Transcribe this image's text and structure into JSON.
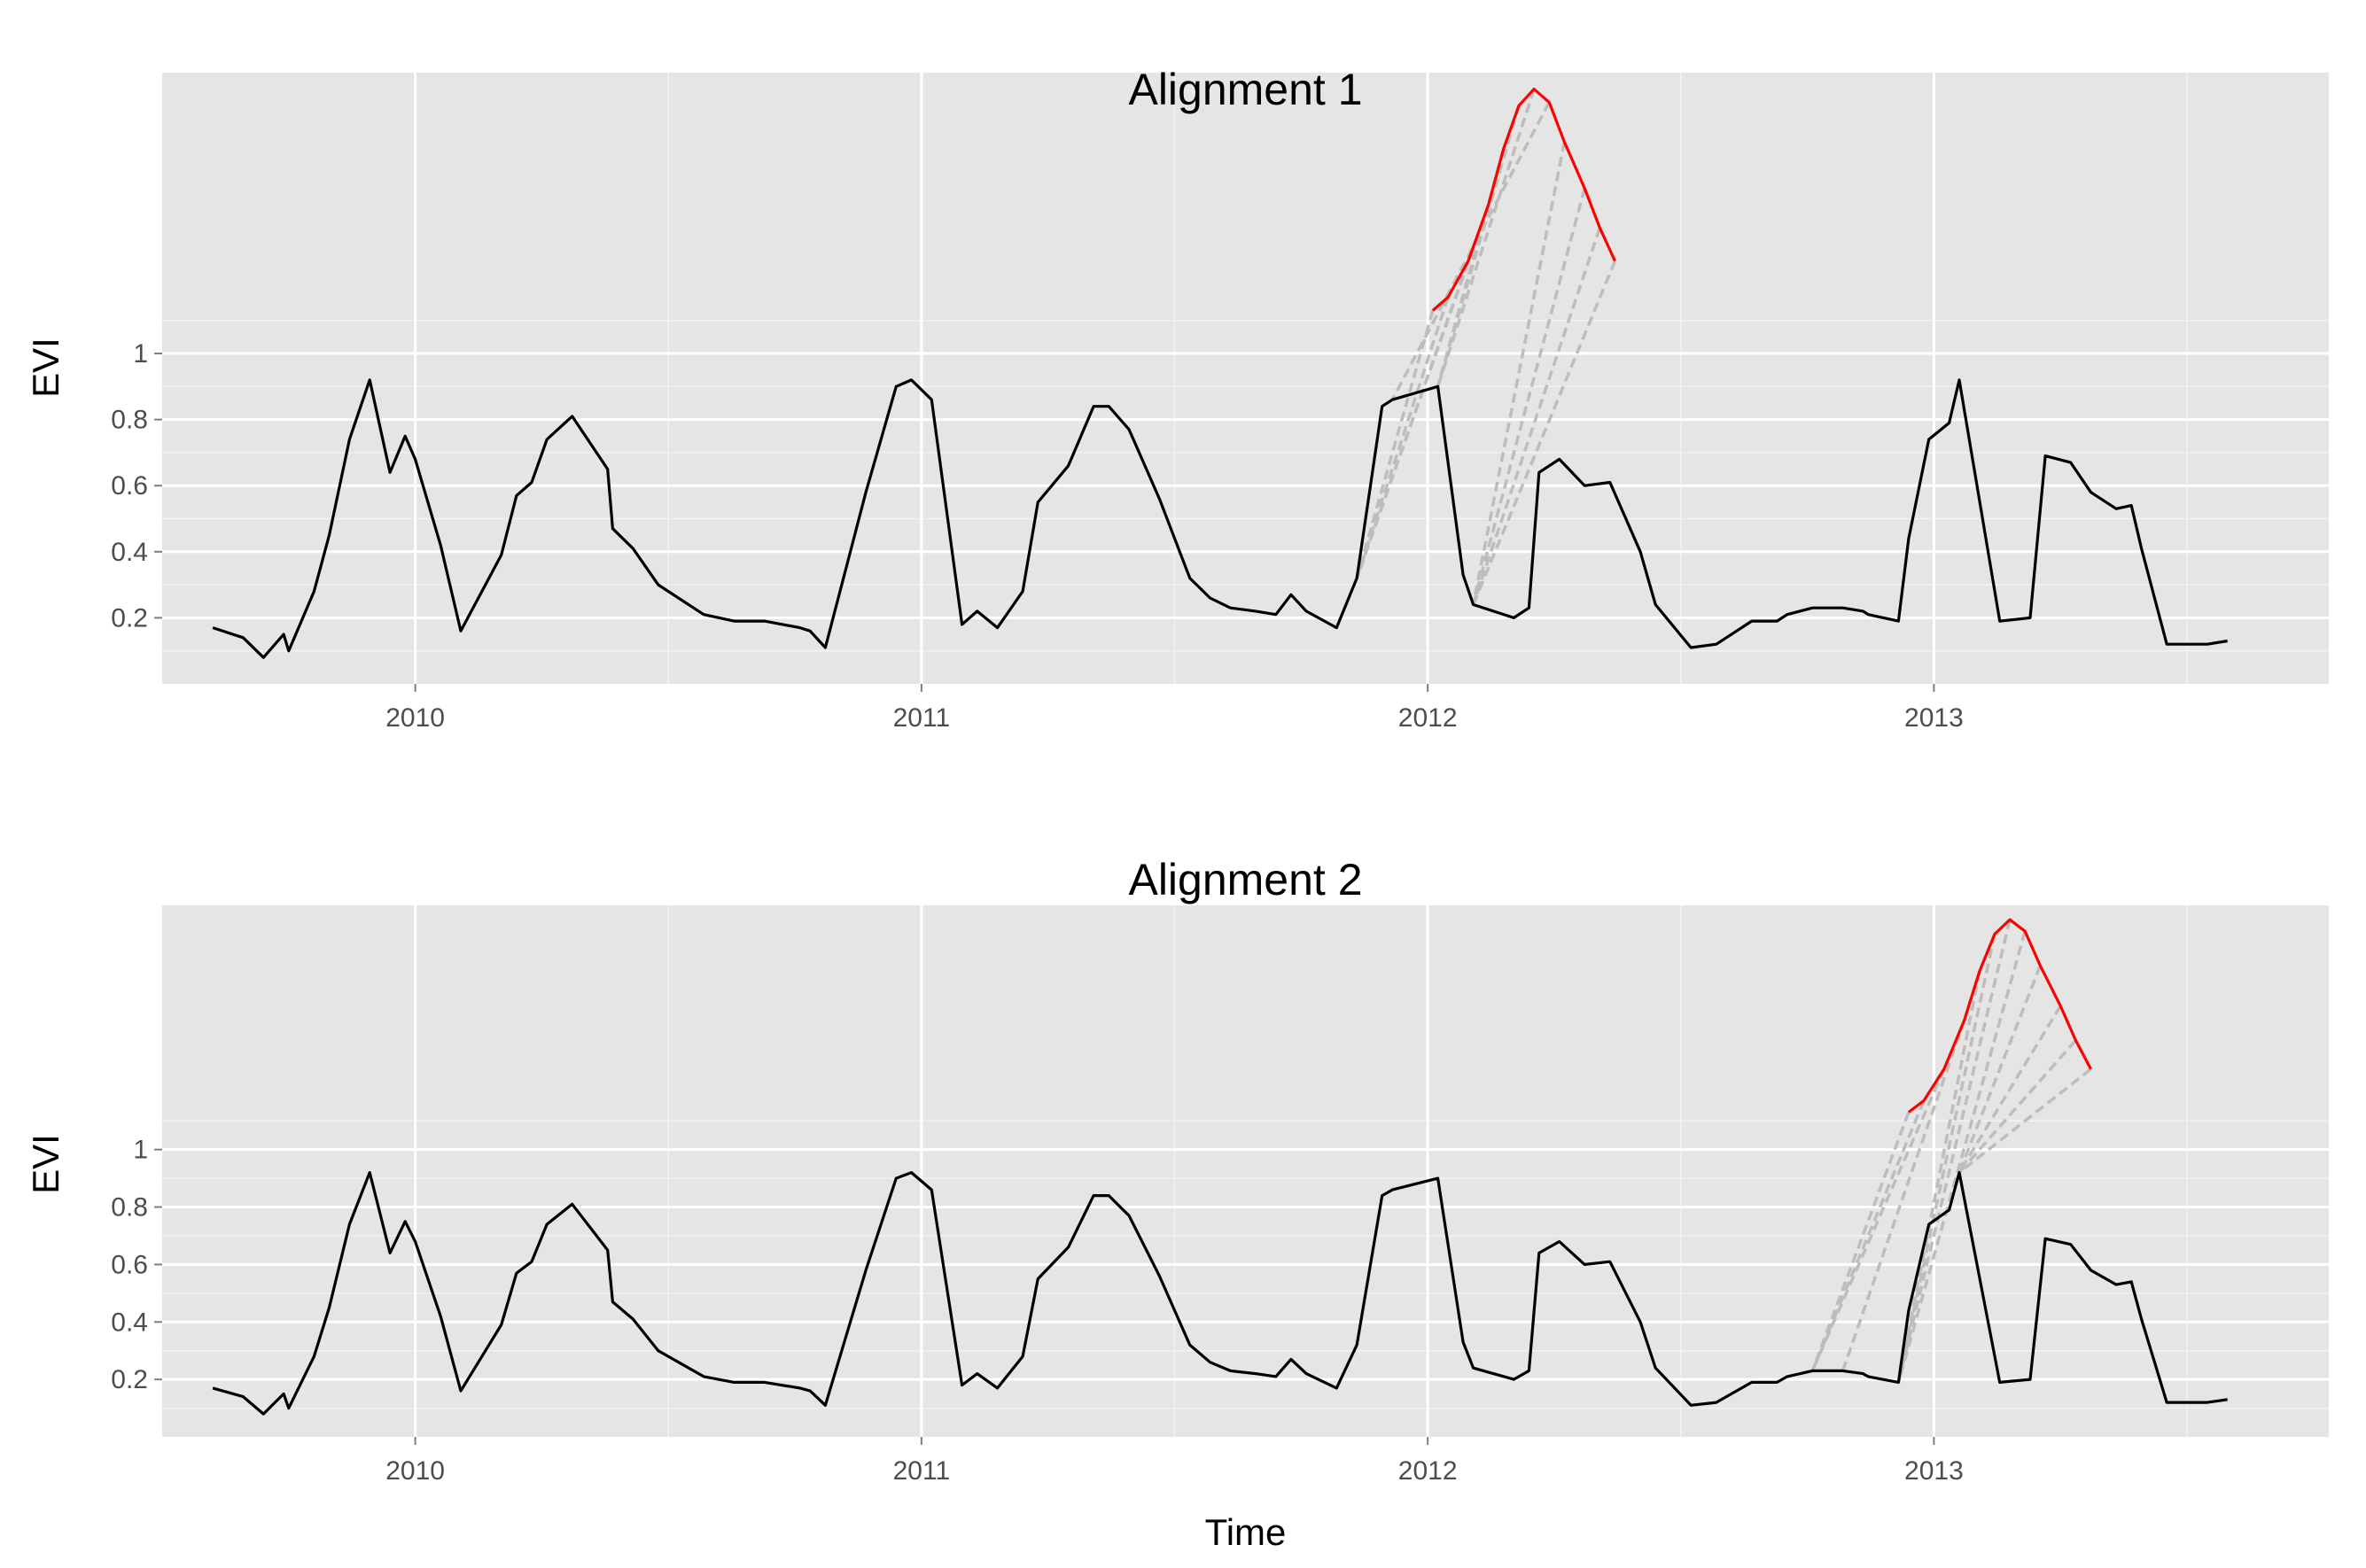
{
  "chart_data": [
    {
      "type": "line",
      "title": "Alignment 1",
      "xlabel": "",
      "ylabel": "EVI",
      "xlim": [
        2009.5,
        2013.78
      ],
      "ylim": [
        0.0,
        1.85
      ],
      "x_ticks": [
        2010,
        2011,
        2012,
        2013
      ],
      "y_ticks": [
        0.2,
        0.4,
        0.6,
        0.8,
        1
      ],
      "y_tick_labels": [
        "0.2",
        "0.4",
        "0.6",
        "0.8",
        "1"
      ],
      "grid": true,
      "series": [
        {
          "color": "#000000",
          "x": [
            2009.6,
            2009.66,
            2009.7,
            2009.74,
            2009.75,
            2009.8,
            2009.83,
            2009.87,
            2009.91,
            2009.95,
            2009.98,
            2010.0,
            2010.05,
            2010.09,
            2010.17,
            2010.2,
            2010.23,
            2010.26,
            2010.31,
            2010.38,
            2010.39,
            2010.43,
            2010.48,
            2010.57,
            2010.63,
            2010.69,
            2010.69,
            2010.76,
            2010.78,
            2010.81,
            2010.89,
            2010.95,
            2010.98,
            2011.02,
            2011.08,
            2011.11,
            2011.15,
            2011.2,
            2011.23,
            2011.29,
            2011.34,
            2011.37,
            2011.41,
            2011.47,
            2011.53,
            2011.57,
            2011.61,
            2011.66,
            2011.7,
            2011.73,
            2011.76,
            2011.82,
            2011.86,
            2011.91,
            2011.93,
            2012.02,
            2012.07,
            2012.09,
            2012.17,
            2012.2,
            2012.22,
            2012.26,
            2012.31,
            2012.36,
            2012.42,
            2012.45,
            2012.52,
            2012.57,
            2012.59,
            2012.64,
            2012.69,
            2012.71,
            2012.76,
            2012.82,
            2012.86,
            2012.87,
            2012.93,
            2012.95,
            2012.99,
            2013.03,
            2013.05,
            2013.13,
            2013.19,
            2013.22,
            2013.27,
            2013.31,
            2013.36,
            2013.39,
            2013.41,
            2013.46,
            2013.5,
            2013.54,
            2013.58
          ],
          "y": [
            0.17,
            0.14,
            0.08,
            0.15,
            0.1,
            0.28,
            0.45,
            0.74,
            0.92,
            0.64,
            0.75,
            0.68,
            0.42,
            0.16,
            0.39,
            0.57,
            0.61,
            0.74,
            0.81,
            0.65,
            0.47,
            0.41,
            0.3,
            0.21,
            0.19,
            0.19,
            0.19,
            0.17,
            0.16,
            0.11,
            0.58,
            0.9,
            0.92,
            0.86,
            0.18,
            0.22,
            0.17,
            0.28,
            0.55,
            0.66,
            0.84,
            0.84,
            0.77,
            0.56,
            0.32,
            0.26,
            0.23,
            0.22,
            0.21,
            0.27,
            0.22,
            0.17,
            0.32,
            0.84,
            0.86,
            0.9,
            0.33,
            0.24,
            0.2,
            0.23,
            0.64,
            0.68,
            0.6,
            0.61,
            0.4,
            0.24,
            0.11,
            0.12,
            0.14,
            0.19,
            0.19,
            0.21,
            0.23,
            0.23,
            0.22,
            0.21,
            0.19,
            0.44,
            0.74,
            0.79,
            0.92,
            0.19,
            0.2,
            0.69,
            0.67,
            0.58,
            0.53,
            0.54,
            0.41,
            0.12,
            0.12,
            0.12,
            0.13
          ]
        },
        {
          "color": "#ff0000",
          "x": [
            2012.01,
            2012.04,
            2012.08,
            2012.12,
            2012.15,
            2012.18,
            2012.21,
            2012.24,
            2012.27,
            2012.31,
            2012.34,
            2012.37
          ],
          "y": [
            1.13,
            1.17,
            1.28,
            1.45,
            1.62,
            1.75,
            1.8,
            1.76,
            1.64,
            1.5,
            1.38,
            1.28
          ]
        }
      ]
    },
    {
      "type": "line",
      "title": "Alignment 2",
      "xlabel": "Time",
      "ylabel": "EVI",
      "xlim": [
        2009.5,
        2013.78
      ],
      "ylim": [
        0.0,
        1.85
      ],
      "x_ticks": [
        2010,
        2011,
        2012,
        2013
      ],
      "y_ticks": [
        0.2,
        0.4,
        0.6,
        0.8,
        1
      ],
      "y_tick_labels": [
        "0.2",
        "0.4",
        "0.6",
        "0.8",
        "1"
      ],
      "grid": true,
      "series": [
        {
          "color": "#000000",
          "x": [
            2009.6,
            2009.66,
            2009.7,
            2009.74,
            2009.75,
            2009.8,
            2009.83,
            2009.87,
            2009.91,
            2009.95,
            2009.98,
            2010.0,
            2010.05,
            2010.09,
            2010.17,
            2010.2,
            2010.23,
            2010.26,
            2010.31,
            2010.38,
            2010.39,
            2010.43,
            2010.48,
            2010.57,
            2010.63,
            2010.69,
            2010.69,
            2010.76,
            2010.78,
            2010.81,
            2010.89,
            2010.95,
            2010.98,
            2011.02,
            2011.08,
            2011.11,
            2011.15,
            2011.2,
            2011.23,
            2011.29,
            2011.34,
            2011.37,
            2011.41,
            2011.47,
            2011.53,
            2011.57,
            2011.61,
            2011.66,
            2011.7,
            2011.73,
            2011.76,
            2011.82,
            2011.86,
            2011.91,
            2011.93,
            2012.02,
            2012.07,
            2012.09,
            2012.17,
            2012.2,
            2012.22,
            2012.26,
            2012.31,
            2012.36,
            2012.42,
            2012.45,
            2012.52,
            2012.57,
            2012.59,
            2012.64,
            2012.69,
            2012.71,
            2012.76,
            2012.82,
            2012.86,
            2012.87,
            2012.93,
            2012.95,
            2012.99,
            2013.03,
            2013.05,
            2013.13,
            2013.19,
            2013.22,
            2013.27,
            2013.31,
            2013.36,
            2013.39,
            2013.41,
            2013.46,
            2013.5,
            2013.54,
            2013.58
          ],
          "y": [
            0.17,
            0.14,
            0.08,
            0.15,
            0.1,
            0.28,
            0.45,
            0.74,
            0.92,
            0.64,
            0.75,
            0.68,
            0.42,
            0.16,
            0.39,
            0.57,
            0.61,
            0.74,
            0.81,
            0.65,
            0.47,
            0.41,
            0.3,
            0.21,
            0.19,
            0.19,
            0.19,
            0.17,
            0.16,
            0.11,
            0.58,
            0.9,
            0.92,
            0.86,
            0.18,
            0.22,
            0.17,
            0.28,
            0.55,
            0.66,
            0.84,
            0.84,
            0.77,
            0.56,
            0.32,
            0.26,
            0.23,
            0.22,
            0.21,
            0.27,
            0.22,
            0.17,
            0.32,
            0.84,
            0.86,
            0.9,
            0.33,
            0.24,
            0.2,
            0.23,
            0.64,
            0.68,
            0.6,
            0.61,
            0.4,
            0.24,
            0.11,
            0.12,
            0.14,
            0.19,
            0.19,
            0.21,
            0.23,
            0.23,
            0.22,
            0.21,
            0.19,
            0.44,
            0.74,
            0.79,
            0.92,
            0.19,
            0.2,
            0.69,
            0.67,
            0.58,
            0.53,
            0.54,
            0.41,
            0.12,
            0.12,
            0.12,
            0.13
          ]
        },
        {
          "color": "#ff0000",
          "x": [
            2012.95,
            2012.98,
            2013.02,
            2013.06,
            2013.09,
            2013.12,
            2013.15,
            2013.18,
            2013.21,
            2013.25,
            2013.28,
            2013.31
          ],
          "y": [
            1.13,
            1.17,
            1.28,
            1.45,
            1.62,
            1.75,
            1.8,
            1.76,
            1.64,
            1.5,
            1.38,
            1.28
          ]
        }
      ]
    }
  ]
}
